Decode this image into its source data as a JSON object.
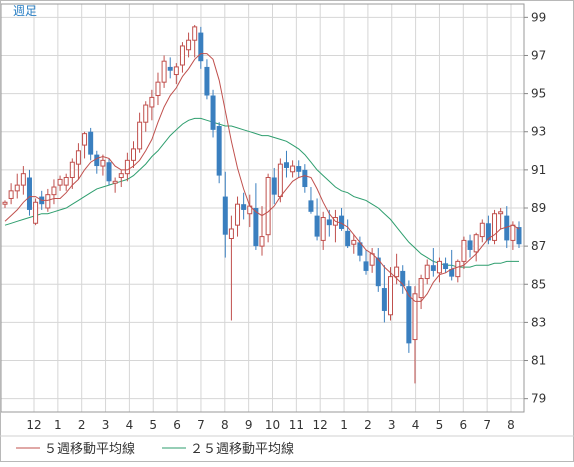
{
  "chart_data": {
    "type": "candlestick",
    "period_label": "週足",
    "y_ticks": [
      79,
      81,
      83,
      85,
      87,
      89,
      91,
      93,
      95,
      97,
      99
    ],
    "ylim": [
      78.3,
      99.7
    ],
    "x_month_labels": [
      "12",
      "1",
      "2",
      "3",
      "4",
      "5",
      "6",
      "7",
      "8",
      "9",
      "10",
      "11",
      "12",
      "1",
      "2",
      "3",
      "4",
      "5",
      "6",
      "7",
      "8"
    ],
    "legend": [
      {
        "label": "５週移動平均線",
        "color": "#c0504d"
      },
      {
        "label": "２５週移動平均線",
        "color": "#2e9e6e"
      }
    ],
    "colors": {
      "up": "#c0504d",
      "down": "#3a7fbf"
    },
    "candles": [
      [
        89.2,
        89.4,
        89.0,
        89.3
      ],
      [
        89.5,
        90.3,
        89.2,
        89.9
      ],
      [
        89.9,
        90.8,
        89.5,
        90.2
      ],
      [
        90.2,
        91.2,
        89.7,
        90.8
      ],
      [
        90.6,
        91.0,
        88.6,
        88.9
      ],
      [
        88.2,
        89.5,
        88.1,
        89.3
      ],
      [
        89.6,
        89.9,
        88.9,
        89.2
      ],
      [
        89.0,
        90.0,
        88.8,
        89.7
      ],
      [
        89.7,
        90.5,
        89.2,
        90.1
      ],
      [
        90.2,
        90.7,
        89.9,
        90.5
      ],
      [
        90.2,
        90.8,
        89.9,
        90.6
      ],
      [
        90.6,
        91.6,
        90.0,
        91.4
      ],
      [
        91.3,
        92.4,
        90.5,
        92.0
      ],
      [
        92.3,
        93.0,
        91.6,
        92.9
      ],
      [
        93.0,
        93.2,
        91.5,
        91.8
      ],
      [
        91.8,
        92.0,
        90.8,
        91.2
      ],
      [
        91.2,
        91.8,
        90.7,
        91.5
      ],
      [
        91.4,
        91.6,
        90.2,
        90.4
      ],
      [
        90.3,
        90.6,
        89.8,
        90.4
      ],
      [
        90.6,
        91.0,
        90.1,
        90.8
      ],
      [
        90.8,
        91.9,
        90.4,
        91.5
      ],
      [
        91.5,
        92.5,
        91.1,
        92.1
      ],
      [
        92.1,
        94.0,
        91.9,
        93.5
      ],
      [
        93.5,
        94.6,
        93.0,
        94.4
      ],
      [
        94.3,
        95.2,
        93.6,
        94.8
      ],
      [
        94.9,
        96.1,
        94.4,
        95.6
      ],
      [
        95.6,
        97.0,
        95.3,
        96.7
      ],
      [
        96.4,
        96.9,
        95.8,
        96.2
      ],
      [
        96.0,
        96.6,
        95.5,
        96.4
      ],
      [
        96.5,
        97.7,
        96.1,
        97.5
      ],
      [
        97.3,
        98.2,
        96.9,
        97.8
      ],
      [
        97.8,
        98.6,
        96.9,
        98.5
      ],
      [
        98.2,
        98.5,
        96.3,
        96.7
      ],
      [
        96.4,
        96.8,
        94.7,
        94.9
      ],
      [
        94.9,
        95.2,
        92.7,
        93.1
      ],
      [
        93.3,
        93.5,
        90.3,
        90.7
      ],
      [
        89.6,
        90.9,
        86.4,
        87.6
      ],
      [
        87.4,
        88.6,
        83.1,
        87.9
      ],
      [
        88.1,
        89.6,
        87.5,
        89.2
      ],
      [
        89.2,
        89.8,
        88.4,
        88.9
      ],
      [
        88.7,
        89.7,
        88.0,
        89.1
      ],
      [
        89.0,
        90.3,
        86.8,
        87.0
      ],
      [
        87.0,
        89.1,
        86.5,
        87.5
      ],
      [
        87.6,
        90.8,
        87.2,
        90.6
      ],
      [
        90.6,
        91.1,
        89.2,
        89.7
      ],
      [
        89.6,
        91.6,
        89.3,
        91.3
      ],
      [
        91.4,
        92.0,
        90.6,
        91.1
      ],
      [
        90.9,
        91.5,
        90.6,
        91.2
      ],
      [
        91.2,
        91.5,
        90.6,
        90.9
      ],
      [
        91.0,
        91.3,
        89.8,
        90.1
      ],
      [
        89.4,
        90.1,
        88.7,
        88.8
      ],
      [
        88.6,
        89.5,
        87.3,
        87.5
      ],
      [
        87.3,
        88.8,
        86.8,
        88.5
      ],
      [
        88.4,
        88.9,
        87.5,
        88.1
      ],
      [
        88.1,
        88.9,
        87.2,
        88.5
      ],
      [
        88.6,
        89.0,
        87.8,
        87.9
      ],
      [
        87.8,
        88.4,
        86.9,
        87.0
      ],
      [
        87.1,
        87.6,
        86.6,
        87.3
      ],
      [
        87.2,
        87.5,
        86.2,
        86.5
      ],
      [
        86.2,
        86.8,
        85.5,
        85.7
      ],
      [
        86.0,
        86.9,
        85.6,
        86.6
      ],
      [
        86.4,
        86.9,
        84.6,
        84.9
      ],
      [
        84.8,
        86.0,
        83.0,
        83.6
      ],
      [
        83.4,
        85.9,
        83.1,
        85.4
      ],
      [
        85.4,
        86.6,
        85.0,
        85.9
      ],
      [
        85.7,
        86.0,
        84.5,
        84.9
      ],
      [
        84.9,
        85.2,
        81.4,
        81.9
      ],
      [
        82.1,
        84.9,
        79.8,
        84.5
      ],
      [
        84.3,
        85.5,
        83.7,
        85.3
      ],
      [
        85.3,
        86.3,
        85.0,
        86.0
      ],
      [
        86.0,
        86.9,
        85.4,
        85.7
      ],
      [
        85.6,
        86.4,
        85.1,
        86.2
      ],
      [
        86.1,
        86.4,
        85.6,
        85.8
      ],
      [
        85.8,
        86.8,
        85.2,
        85.4
      ],
      [
        85.4,
        86.3,
        85.1,
        86.2
      ],
      [
        86.2,
        87.5,
        85.8,
        87.3
      ],
      [
        87.3,
        87.6,
        86.4,
        86.8
      ],
      [
        86.7,
        87.7,
        86.2,
        87.6
      ],
      [
        87.5,
        88.4,
        87.2,
        88.2
      ],
      [
        88.2,
        88.6,
        87.1,
        87.3
      ],
      [
        87.3,
        88.9,
        87.1,
        88.7
      ],
      [
        88.7,
        89.0,
        87.9,
        88.8
      ],
      [
        88.6,
        89.1,
        86.9,
        87.3
      ],
      [
        87.3,
        88.3,
        86.8,
        88.1
      ],
      [
        88.0,
        88.3,
        86.9,
        87.1
      ]
    ],
    "ma5": [
      88.3,
      88.6,
      88.9,
      89.3,
      89.6,
      89.6,
      89.4,
      89.4,
      89.5,
      89.5,
      89.8,
      90.2,
      90.5,
      91.0,
      91.4,
      91.6,
      91.7,
      91.6,
      91.2,
      91.0,
      91.0,
      91.2,
      91.5,
      92.0,
      92.6,
      93.5,
      94.3,
      94.9,
      95.3,
      95.9,
      96.3,
      96.8,
      97.1,
      97.1,
      96.8,
      95.7,
      94.1,
      92.5,
      91.1,
      90.0,
      89.1,
      88.8,
      88.6,
      88.8,
      89.1,
      89.6,
      90.0,
      90.4,
      90.6,
      90.7,
      90.6,
      90.0,
      89.3,
      88.7,
      88.3,
      88.2,
      88.0,
      87.6,
      87.2,
      86.8,
      86.6,
      86.3,
      85.9,
      85.6,
      85.3,
      85.0,
      84.4,
      84.1,
      84.1,
      84.5,
      85.1,
      85.5,
      85.6,
      85.8,
      85.9,
      86.0,
      86.3,
      86.6,
      87.0,
      87.4,
      87.6,
      87.9,
      88.0,
      88.1,
      87.9
    ],
    "ma25": [
      88.1,
      88.2,
      88.3,
      88.4,
      88.5,
      88.6,
      88.7,
      88.7,
      88.8,
      88.9,
      89.0,
      89.2,
      89.4,
      89.6,
      89.8,
      90.0,
      90.1,
      90.2,
      90.3,
      90.4,
      90.5,
      90.7,
      91.0,
      91.3,
      91.7,
      92.0,
      92.4,
      92.8,
      93.1,
      93.4,
      93.6,
      93.7,
      93.7,
      93.6,
      93.5,
      93.4,
      93.3,
      93.3,
      93.2,
      93.1,
      93.0,
      92.9,
      92.8,
      92.8,
      92.7,
      92.6,
      92.5,
      92.3,
      92.1,
      91.8,
      91.4,
      91.0,
      90.7,
      90.4,
      90.1,
      89.9,
      89.8,
      89.6,
      89.5,
      89.4,
      89.2,
      89.0,
      88.7,
      88.4,
      88.0,
      87.6,
      87.2,
      86.9,
      86.6,
      86.4,
      86.2,
      86.1,
      86.0,
      86.0,
      85.9,
      85.9,
      85.9,
      86.0,
      86.0,
      86.0,
      86.1,
      86.1,
      86.2,
      86.2,
      86.2
    ]
  }
}
